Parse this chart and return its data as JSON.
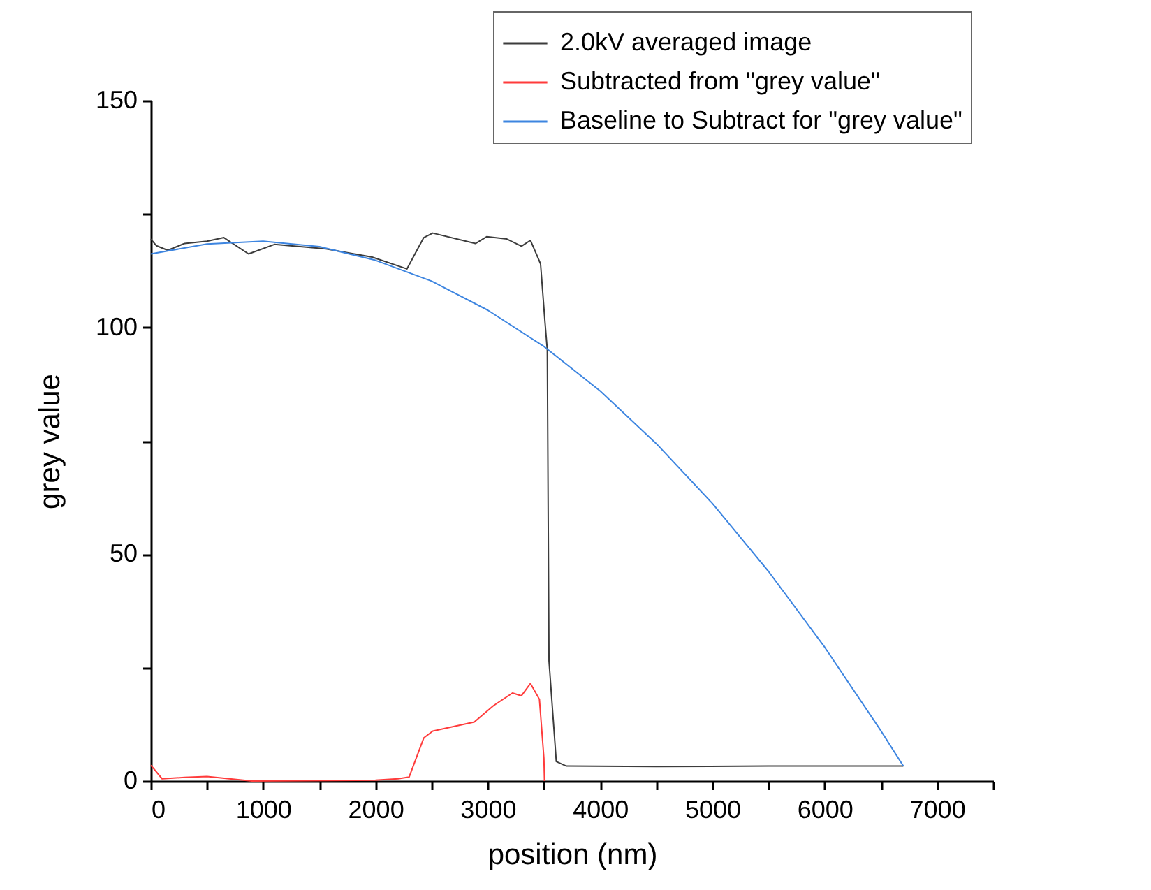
{
  "chart_data": {
    "type": "line",
    "xlabel": "position (nm)",
    "ylabel": "grey value",
    "xlim": [
      0,
      7500
    ],
    "ylim": [
      0,
      150
    ],
    "xticks": [
      0,
      {
        "value": 500,
        "label": null
      },
      1000,
      {
        "value": 1500,
        "label": null
      },
      2000,
      {
        "value": 2500,
        "label": null
      },
      3000,
      {
        "value": 3500,
        "label": null
      },
      4000,
      {
        "value": 4500,
        "label": null
      },
      5000,
      {
        "value": 5500,
        "label": null
      },
      6000,
      {
        "value": 6500,
        "label": null
      },
      7000,
      {
        "value": 7500,
        "label": null
      }
    ],
    "yticks": [
      0,
      {
        "value": 25,
        "label": null
      },
      50,
      {
        "value": 75,
        "label": null
      },
      100,
      {
        "value": 125,
        "label": null
      },
      150
    ],
    "grid": false,
    "legend": "top right",
    "line_style": "solid",
    "marker": "none",
    "series": [
      {
        "name": "2.0kV averaged image",
        "color": "#3c3c3c",
        "x": [
          0,
          50,
          150,
          300,
          500,
          650,
          870,
          1100,
          1560,
          1970,
          2280,
          2430,
          2510,
          2890,
          2990,
          3170,
          3300,
          3380,
          3470,
          3510,
          3530,
          3545,
          3610,
          3700,
          4500,
          5500,
          6700
        ],
        "values": [
          119.5,
          118,
          117,
          118.5,
          119,
          119.8,
          116.2,
          118.3,
          117.3,
          115.5,
          112.9,
          119.8,
          120.8,
          118.5,
          120,
          119.5,
          117.9,
          119.2,
          114,
          101,
          95,
          26.5,
          4.3,
          3.3,
          3.2,
          3.3,
          3.3
        ]
      },
      {
        "name": "Subtracted from \"grey value\"",
        "color": "#ff3b3b",
        "x": [
          0,
          100,
          300,
          500,
          700,
          900,
          2000,
          2200,
          2300,
          2430,
          2510,
          2880,
          3050,
          3220,
          3300,
          3380,
          3460,
          3500,
          3505
        ],
        "values": [
          3.5,
          0.5,
          0.8,
          1,
          0.5,
          0,
          0.2,
          0.5,
          0.9,
          9.5,
          11,
          13,
          16.6,
          19.4,
          18.8,
          21.5,
          18,
          5,
          0
        ]
      },
      {
        "name": "Baseline to Subtract for \"grey value\"",
        "color": "#3d85e0",
        "x": [
          0,
          500,
          1000,
          1500,
          2000,
          2500,
          3000,
          3500,
          4000,
          4500,
          5000,
          5500,
          6000,
          6500,
          6700
        ],
        "values": [
          116.2,
          118.4,
          119.0,
          117.8,
          114.8,
          110.2,
          103.8,
          95.8,
          86.0,
          74.4,
          61.2,
          46.2,
          29.5,
          11.1,
          3.3
        ]
      }
    ]
  }
}
